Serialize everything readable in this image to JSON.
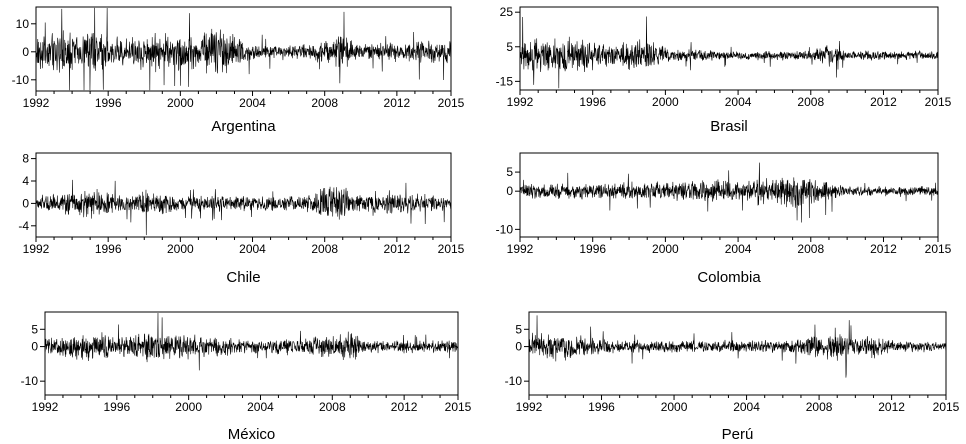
{
  "chart_data": [
    {
      "type": "line",
      "title": "Argentina",
      "xlim": [
        1992,
        2015
      ],
      "ylim": [
        -14,
        16
      ],
      "xticks": [
        "1992",
        "1996",
        "2000",
        "2004",
        "2008",
        "2012",
        "2015"
      ],
      "yticks": [
        "10",
        "0",
        "-10"
      ],
      "volatility_profile": [
        {
          "year": 1992,
          "amplitude": 7
        },
        {
          "year": 1995,
          "amplitude": 9
        },
        {
          "year": 1997,
          "amplitude": 5
        },
        {
          "year": 1998,
          "amplitude": 8
        },
        {
          "year": 2001,
          "amplitude": 7
        },
        {
          "year": 2002,
          "amplitude": 12
        },
        {
          "year": 2004,
          "amplitude": 3
        },
        {
          "year": 2007,
          "amplitude": 3
        },
        {
          "year": 2008,
          "amplitude": 5
        },
        {
          "year": 2009,
          "amplitude": 7
        },
        {
          "year": 2010,
          "amplitude": 3
        },
        {
          "year": 2014,
          "amplitude": 5
        },
        {
          "year": 2015,
          "amplitude": 5
        }
      ]
    },
    {
      "type": "line",
      "title": "Brasil",
      "xlim": [
        1992,
        2015
      ],
      "ylim": [
        -20,
        28
      ],
      "xticks": [
        "1992",
        "1996",
        "2000",
        "2004",
        "2008",
        "2012",
        "2015"
      ],
      "yticks": [
        "25",
        "5",
        "-15"
      ],
      "volatility_profile": [
        {
          "year": 1992,
          "amplitude": 10
        },
        {
          "year": 1995,
          "amplitude": 12
        },
        {
          "year": 1997,
          "amplitude": 7
        },
        {
          "year": 1999,
          "amplitude": 12
        },
        {
          "year": 2000,
          "amplitude": 5
        },
        {
          "year": 2003,
          "amplitude": 3
        },
        {
          "year": 2008,
          "amplitude": 3
        },
        {
          "year": 2009,
          "amplitude": 8
        },
        {
          "year": 2010,
          "amplitude": 3
        },
        {
          "year": 2015,
          "amplitude": 3
        }
      ]
    },
    {
      "type": "line",
      "title": "Chile",
      "xlim": [
        1992,
        2015
      ],
      "ylim": [
        -6,
        9
      ],
      "xticks": [
        "1992",
        "1996",
        "2000",
        "2004",
        "2008",
        "2012",
        "2015"
      ],
      "yticks": [
        "8",
        "4",
        "0",
        "-4"
      ],
      "volatility_profile": [
        {
          "year": 1992,
          "amplitude": 1.5
        },
        {
          "year": 1995,
          "amplitude": 3
        },
        {
          "year": 1997,
          "amplitude": 1.5
        },
        {
          "year": 1998,
          "amplitude": 3
        },
        {
          "year": 2000,
          "amplitude": 1.5
        },
        {
          "year": 2007,
          "amplitude": 1.5
        },
        {
          "year": 2008,
          "amplitude": 4
        },
        {
          "year": 2009,
          "amplitude": 4
        },
        {
          "year": 2010,
          "amplitude": 1.5
        },
        {
          "year": 2011,
          "amplitude": 3
        },
        {
          "year": 2012,
          "amplitude": 2
        },
        {
          "year": 2015,
          "amplitude": 1.5
        }
      ]
    },
    {
      "type": "line",
      "title": "Colombia",
      "xlim": [
        1992,
        2015
      ],
      "ylim": [
        -12,
        10
      ],
      "xticks": [
        "1992",
        "1996",
        "2000",
        "2004",
        "2008",
        "2012",
        "2015"
      ],
      "yticks": [
        "5",
        "0",
        "-10"
      ],
      "volatility_profile": [
        {
          "year": 1992,
          "amplitude": 2
        },
        {
          "year": 1998,
          "amplitude": 2.5
        },
        {
          "year": 2002,
          "amplitude": 3
        },
        {
          "year": 2006,
          "amplitude": 4
        },
        {
          "year": 2007,
          "amplitude": 5
        },
        {
          "year": 2009,
          "amplitude": 3
        },
        {
          "year": 2010,
          "amplitude": 1.5
        },
        {
          "year": 2015,
          "amplitude": 1.5
        }
      ]
    },
    {
      "type": "line",
      "title": "México",
      "xlim": [
        1992,
        2015
      ],
      "ylim": [
        -14,
        10
      ],
      "xticks": [
        "1992",
        "1996",
        "2000",
        "2004",
        "2008",
        "2012",
        "2015"
      ],
      "yticks": [
        "5",
        "0",
        "-10"
      ],
      "volatility_profile": [
        {
          "year": 1992,
          "amplitude": 2.5
        },
        {
          "year": 1995,
          "amplitude": 5
        },
        {
          "year": 1996,
          "amplitude": 3
        },
        {
          "year": 1998,
          "amplitude": 6
        },
        {
          "year": 2000,
          "amplitude": 4
        },
        {
          "year": 2002,
          "amplitude": 3
        },
        {
          "year": 2004,
          "amplitude": 2
        },
        {
          "year": 2008,
          "amplitude": 4
        },
        {
          "year": 2009,
          "amplitude": 5
        },
        {
          "year": 2010,
          "amplitude": 2
        },
        {
          "year": 2015,
          "amplitude": 2
        }
      ]
    },
    {
      "type": "line",
      "title": "Perú",
      "xlim": [
        1992,
        2015
      ],
      "ylim": [
        -14,
        10
      ],
      "xticks": [
        "1992",
        "1996",
        "2000",
        "2004",
        "2008",
        "2012",
        "2015"
      ],
      "yticks": [
        "5",
        "0",
        "-10"
      ],
      "volatility_profile": [
        {
          "year": 1992,
          "amplitude": 4
        },
        {
          "year": 1994,
          "amplitude": 5
        },
        {
          "year": 1995,
          "amplitude": 3
        },
        {
          "year": 1996,
          "amplitude": 2.5
        },
        {
          "year": 2000,
          "amplitude": 2
        },
        {
          "year": 2006,
          "amplitude": 2
        },
        {
          "year": 2008,
          "amplitude": 4
        },
        {
          "year": 2009,
          "amplitude": 6
        },
        {
          "year": 2010,
          "amplitude": 2.5
        },
        {
          "year": 2011,
          "amplitude": 4
        },
        {
          "year": 2012,
          "amplitude": 2
        },
        {
          "year": 2015,
          "amplitude": 1.5
        }
      ]
    }
  ]
}
